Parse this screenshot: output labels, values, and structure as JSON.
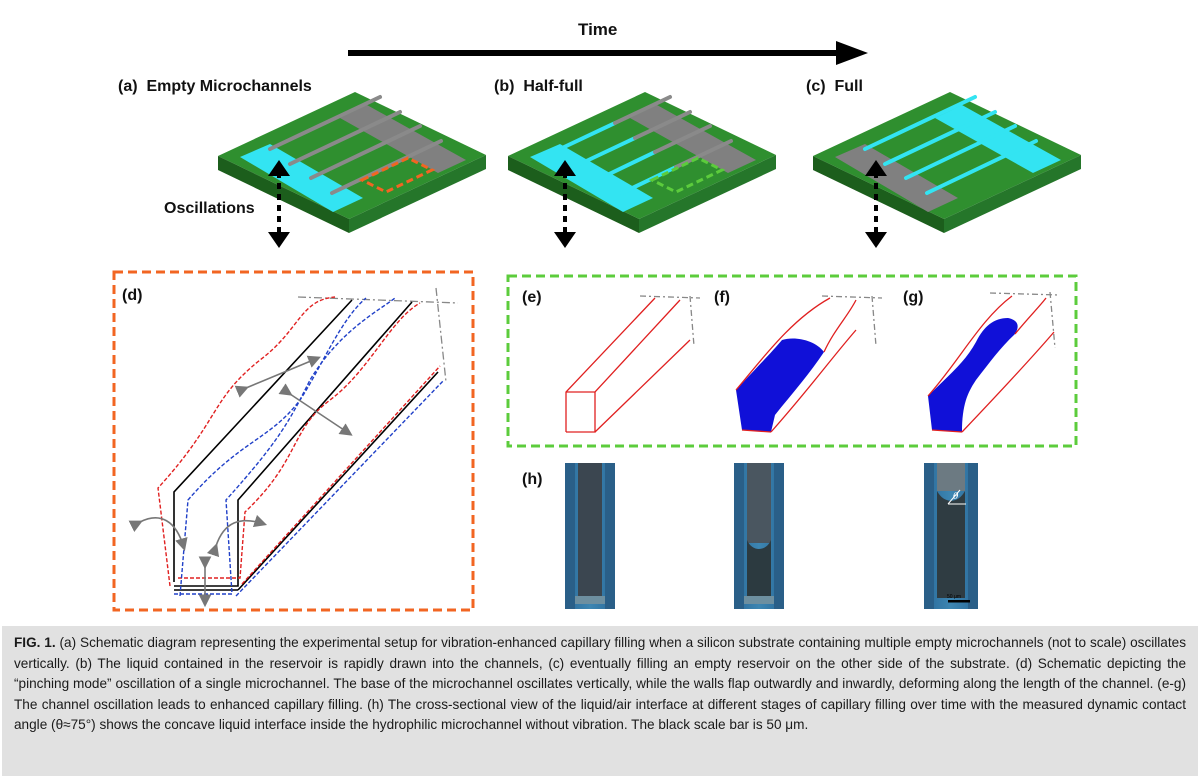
{
  "figure": {
    "time_label": "Time",
    "panel_a_label": "(a)  Empty Microchannels",
    "panel_b_label": "(b)  Half-full",
    "panel_c_label": "(c)  Full",
    "oscillations_label": "Oscillations",
    "panel_d_label": "(d)",
    "panel_e_label": "(e)",
    "panel_f_label": "(f)",
    "panel_g_label": "(g)",
    "panel_h_label": "(h)",
    "theta_label": "θ",
    "scale_bar_label": "50 μm",
    "colors": {
      "substrate_green": "#2e8b2e",
      "reservoir_cyan": "#33e4f2",
      "reservoir_gray": "#808080",
      "box_orange": "#f26522",
      "box_green": "#5ccc3c",
      "liquid_blue": "#1010d8",
      "wall_red": "#e02020"
    }
  },
  "caption": {
    "prefix": "FIG. 1.",
    "text": " (a) Schematic diagram representing the experimental setup for vibration-enhanced capillary filling when a silicon substrate containing multiple empty microchannels (not to scale) oscillates vertically. (b) The liquid contained in the reservoir is rapidly drawn into the channels, (c) eventually filling an empty reservoir on the other side of the substrate. (d) Schematic depicting the “pinching mode” oscillation of a single microchannel. The base of the microchannel oscillates vertically, while the walls flap outwardly and inwardly, deforming along the length of the channel. (e-g) The channel oscillation leads to enhanced capillary filling. (h) The cross-sectional view of the liquid/air interface at different stages of capillary filling over time with the measured dynamic contact angle (θ≈75°) shows the concave liquid interface inside the hydrophilic microchannel without vibration. The black scale bar is 50 μm."
  }
}
